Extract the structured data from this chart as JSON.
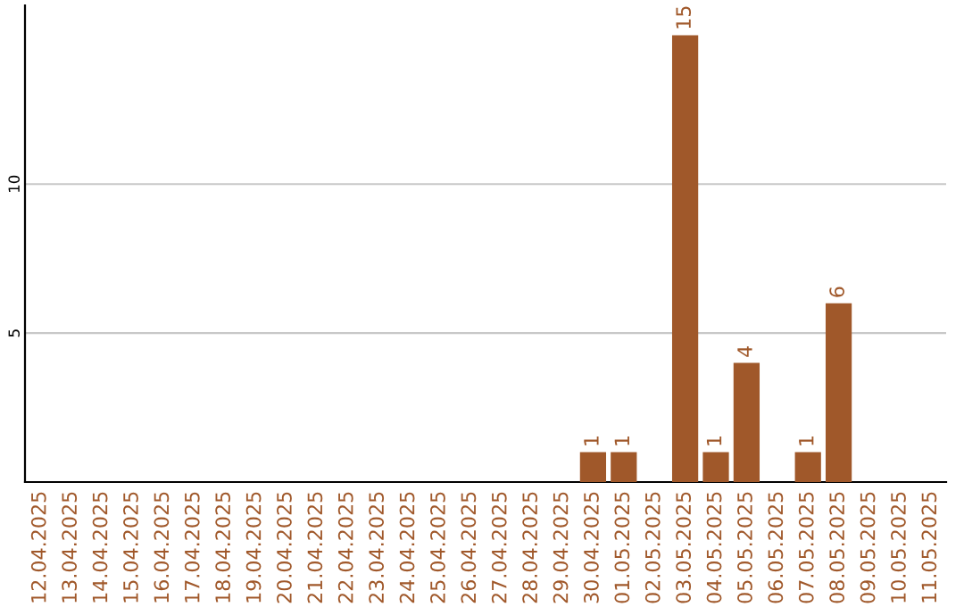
{
  "chart_data": {
    "type": "bar",
    "categories": [
      "12.04.2025",
      "13.04.2025",
      "14.04.2025",
      "15.04.2025",
      "16.04.2025",
      "17.04.2025",
      "18.04.2025",
      "19.04.2025",
      "20.04.2025",
      "21.04.2025",
      "22.04.2025",
      "23.04.2025",
      "24.04.2025",
      "25.04.2025",
      "26.04.2025",
      "27.04.2025",
      "28.04.2025",
      "29.04.2025",
      "30.04.2025",
      "01.05.2025",
      "02.05.2025",
      "03.05.2025",
      "04.05.2025",
      "05.05.2025",
      "06.05.2025",
      "07.05.2025",
      "08.05.2025",
      "09.05.2025",
      "10.05.2025",
      "11.05.2025"
    ],
    "values": [
      0,
      0,
      0,
      0,
      0,
      0,
      0,
      0,
      0,
      0,
      0,
      0,
      0,
      0,
      0,
      0,
      0,
      0,
      1,
      1,
      0,
      15,
      1,
      4,
      0,
      1,
      6,
      0,
      0,
      0
    ],
    "value_labels": [
      null,
      null,
      null,
      null,
      null,
      null,
      null,
      null,
      null,
      null,
      null,
      null,
      null,
      null,
      null,
      null,
      null,
      null,
      "1",
      "1",
      null,
      "15",
      "1",
      "4",
      null,
      "1",
      "6",
      null,
      null,
      null
    ],
    "color": "#a0582a",
    "ylim": [
      0,
      16
    ],
    "yticks": [
      5,
      10
    ],
    "grid": "y"
  }
}
